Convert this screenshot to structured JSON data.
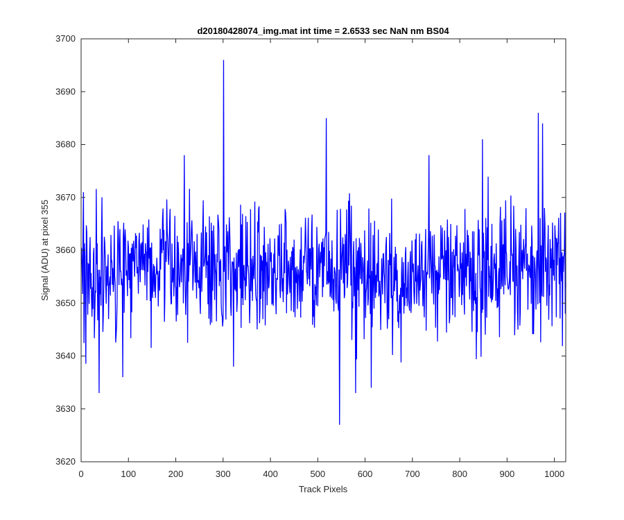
{
  "chart_data": {
    "type": "line",
    "title": "d20180428074_img.mat int time = 2.6533 sec  NaN nm BS04",
    "xlabel": "Track Pixels",
    "ylabel": "Signal (ADU) at pixel 355",
    "xlim": [
      0,
      1024
    ],
    "ylim": [
      3620,
      3700
    ],
    "xticks": [
      0,
      100,
      200,
      300,
      400,
      500,
      600,
      700,
      800,
      900,
      1000
    ],
    "yticks": [
      3620,
      3630,
      3640,
      3650,
      3660,
      3670,
      3680,
      3690,
      3700
    ],
    "grid": false,
    "series": [
      {
        "color": "#0000ff",
        "n_points": 1024,
        "x_start": 1,
        "approx_mean": 3656,
        "approx_spread": 7,
        "notable_points": [
          {
            "x": 5,
            "y": 3671
          },
          {
            "x": 38,
            "y": 3633
          },
          {
            "x": 88,
            "y": 3636
          },
          {
            "x": 218,
            "y": 3678
          },
          {
            "x": 301,
            "y": 3696
          },
          {
            "x": 518,
            "y": 3685
          },
          {
            "x": 546,
            "y": 3627
          },
          {
            "x": 580,
            "y": 3633
          },
          {
            "x": 613,
            "y": 3634
          },
          {
            "x": 735,
            "y": 3678
          },
          {
            "x": 848,
            "y": 3681
          },
          {
            "x": 966,
            "y": 3686
          },
          {
            "x": 975,
            "y": 3684
          },
          {
            "x": 1023,
            "y": 3648
          }
        ]
      }
    ]
  }
}
